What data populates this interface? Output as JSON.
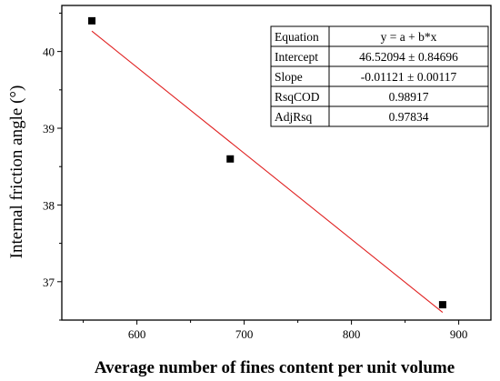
{
  "chart_data": {
    "type": "scatter",
    "xlabel": "Average number of fines content per unit volume",
    "ylabel": "Internal friction angle (°)",
    "xlim": [
      530,
      930
    ],
    "ylim": [
      36.5,
      40.6
    ],
    "x_ticks": [
      600,
      700,
      800,
      900
    ],
    "y_ticks": [
      37,
      38,
      39,
      40
    ],
    "series": [
      {
        "points": [
          {
            "x": 558,
            "y": 40.4
          },
          {
            "x": 687,
            "y": 38.6
          },
          {
            "x": 885,
            "y": 36.7
          }
        ],
        "color": "#000000",
        "marker": "square"
      }
    ],
    "fit_line": {
      "color": "#e02020",
      "intercept": 46.52094,
      "slope": -0.01121,
      "x_range": [
        558,
        885
      ]
    },
    "fit_table": [
      {
        "label": "Equation",
        "value": "y = a + b*x"
      },
      {
        "label": "Intercept",
        "value": "46.52094 ± 0.84696"
      },
      {
        "label": "Slope",
        "value": "-0.01121 ± 0.00117"
      },
      {
        "label": "RsqCOD",
        "value": "0.98917"
      },
      {
        "label": "AdjRsq",
        "value": "0.97834"
      }
    ],
    "grid": false,
    "axis_ticks_visible": true
  }
}
